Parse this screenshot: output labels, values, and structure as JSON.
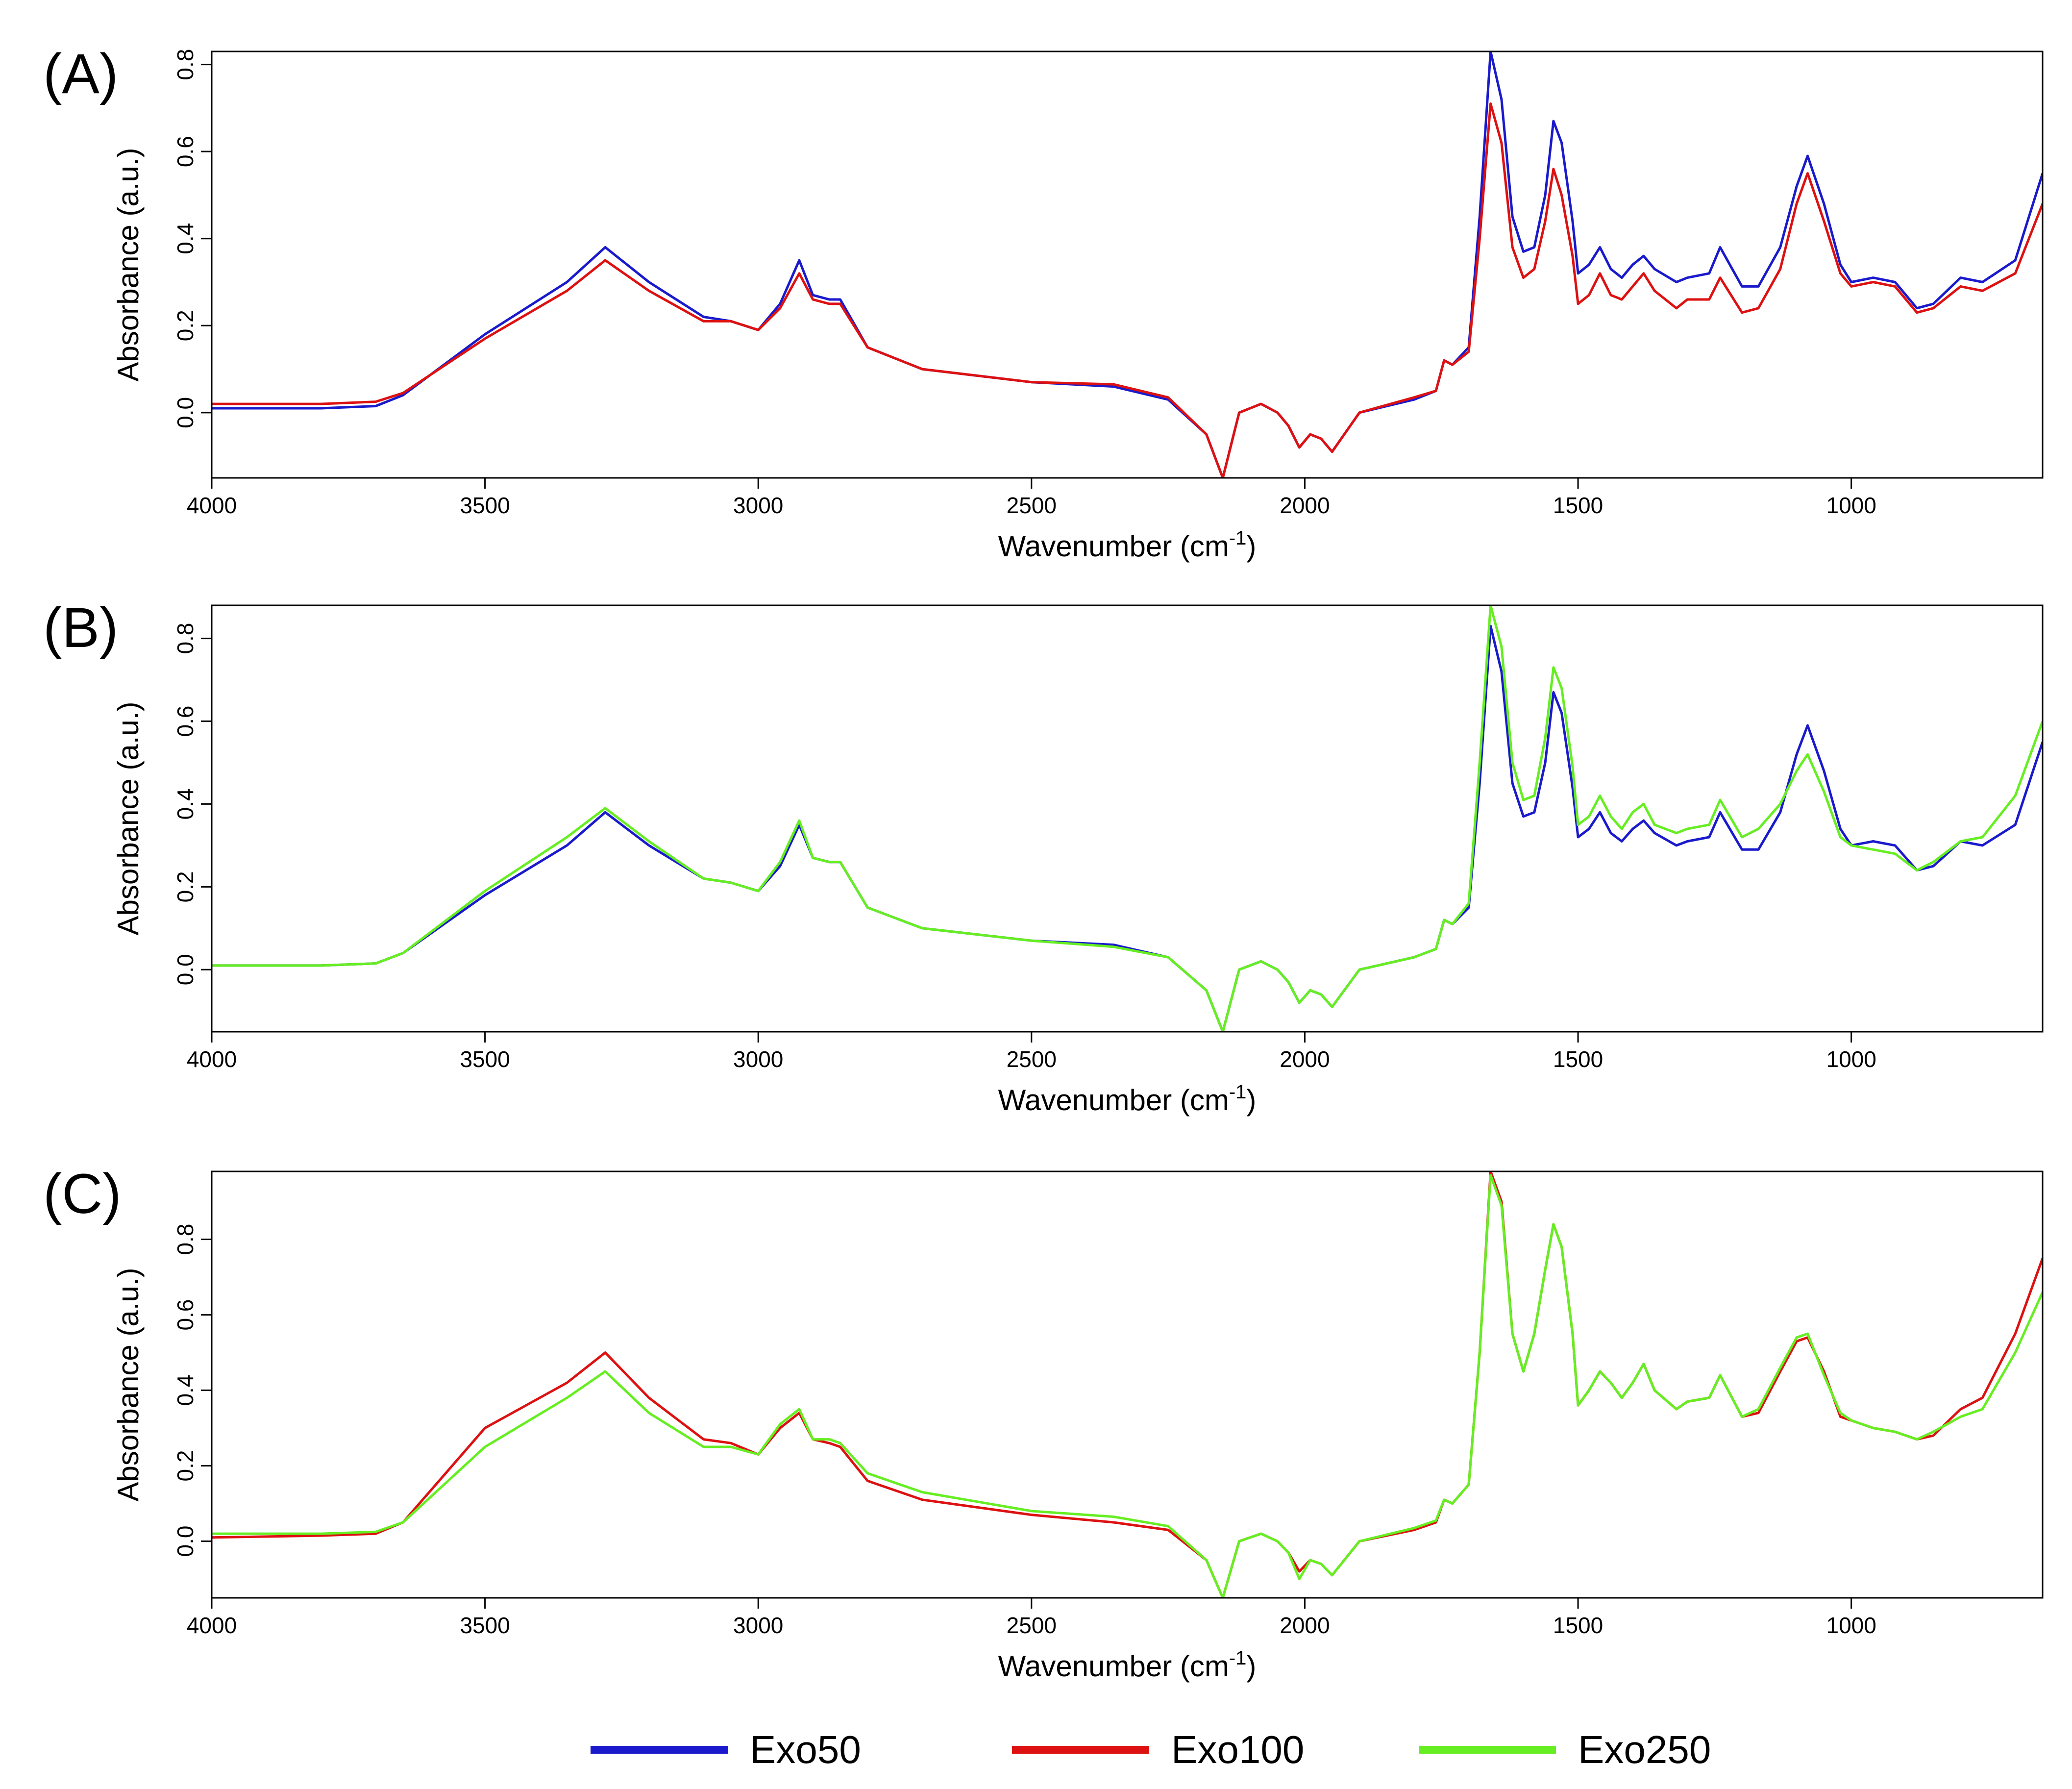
{
  "figure": {
    "legend": [
      {
        "name": "Exo50",
        "color": "#1a1acc"
      },
      {
        "name": "Exo100",
        "color": "#dd1111"
      },
      {
        "name": "Exo250",
        "color": "#66ee22"
      }
    ]
  },
  "chart_data": [
    {
      "type": "line",
      "panel_label": "(A)",
      "xlabel": "Wavenumber (cm",
      "xlabel_sup": "-1",
      "xlabel_end": ")",
      "ylabel": "Absorbance (a.u.)",
      "xlim": [
        4000,
        650
      ],
      "ylim": [
        -0.15,
        0.83
      ],
      "xticks": [
        4000,
        3500,
        3000,
        2500,
        2000,
        1500,
        1000
      ],
      "xtick_labels": [
        "4000",
        "3500",
        "3000",
        "2500",
        "2000",
        "1500",
        "1000"
      ],
      "yticks": [
        0.0,
        0.2,
        0.4,
        0.6,
        0.8
      ],
      "ytick_labels": [
        "0.0",
        "0.2",
        "0.4",
        "0.6",
        "0.8"
      ],
      "series": [
        {
          "name": "Exo50",
          "color": "#1a1acc",
          "x": [
            4000,
            3800,
            3700,
            3650,
            3500,
            3350,
            3280,
            3200,
            3100,
            3050,
            3000,
            2960,
            2925,
            2900,
            2870,
            2850,
            2800,
            2700,
            2500,
            2350,
            2250,
            2180,
            2150,
            2120,
            2080,
            2050,
            2030,
            2010,
            1990,
            1970,
            1950,
            1900,
            1800,
            1760,
            1745,
            1730,
            1700,
            1680,
            1660,
            1640,
            1620,
            1600,
            1580,
            1560,
            1545,
            1530,
            1510,
            1500,
            1480,
            1460,
            1440,
            1420,
            1400,
            1380,
            1360,
            1320,
            1300,
            1260,
            1240,
            1200,
            1170,
            1130,
            1100,
            1080,
            1050,
            1020,
            1000,
            960,
            920,
            880,
            850,
            800,
            760,
            700,
            650
          ],
          "y": [
            0.01,
            0.01,
            0.015,
            0.04,
            0.18,
            0.3,
            0.38,
            0.3,
            0.22,
            0.21,
            0.19,
            0.25,
            0.35,
            0.27,
            0.26,
            0.26,
            0.15,
            0.1,
            0.07,
            0.06,
            0.03,
            -0.05,
            -0.15,
            0.0,
            0.02,
            0.0,
            -0.03,
            -0.08,
            -0.05,
            -0.06,
            -0.09,
            0.0,
            0.03,
            0.05,
            0.12,
            0.11,
            0.15,
            0.45,
            0.83,
            0.72,
            0.45,
            0.37,
            0.38,
            0.5,
            0.67,
            0.62,
            0.44,
            0.32,
            0.34,
            0.38,
            0.33,
            0.31,
            0.34,
            0.36,
            0.33,
            0.3,
            0.31,
            0.32,
            0.38,
            0.29,
            0.29,
            0.38,
            0.52,
            0.59,
            0.48,
            0.34,
            0.3,
            0.31,
            0.3,
            0.24,
            0.25,
            0.31,
            0.3,
            0.35,
            0.55
          ]
        },
        {
          "name": "Exo100",
          "color": "#dd1111",
          "x": [
            4000,
            3800,
            3700,
            3650,
            3500,
            3350,
            3280,
            3200,
            3100,
            3050,
            3000,
            2960,
            2925,
            2900,
            2870,
            2850,
            2800,
            2700,
            2500,
            2350,
            2250,
            2180,
            2150,
            2120,
            2080,
            2050,
            2030,
            2010,
            1990,
            1970,
            1950,
            1900,
            1800,
            1760,
            1745,
            1730,
            1700,
            1680,
            1660,
            1640,
            1620,
            1600,
            1580,
            1560,
            1545,
            1530,
            1510,
            1500,
            1480,
            1460,
            1440,
            1420,
            1400,
            1380,
            1360,
            1320,
            1300,
            1260,
            1240,
            1200,
            1170,
            1130,
            1100,
            1080,
            1050,
            1020,
            1000,
            960,
            920,
            880,
            850,
            800,
            760,
            700,
            650
          ],
          "y": [
            0.02,
            0.02,
            0.025,
            0.045,
            0.17,
            0.28,
            0.35,
            0.28,
            0.21,
            0.21,
            0.19,
            0.24,
            0.32,
            0.26,
            0.25,
            0.25,
            0.15,
            0.1,
            0.07,
            0.065,
            0.035,
            -0.05,
            -0.15,
            0.0,
            0.02,
            0.0,
            -0.03,
            -0.08,
            -0.05,
            -0.06,
            -0.09,
            0.0,
            0.035,
            0.05,
            0.12,
            0.11,
            0.14,
            0.4,
            0.71,
            0.62,
            0.38,
            0.31,
            0.33,
            0.44,
            0.56,
            0.5,
            0.36,
            0.25,
            0.27,
            0.32,
            0.27,
            0.26,
            0.29,
            0.32,
            0.28,
            0.24,
            0.26,
            0.26,
            0.31,
            0.23,
            0.24,
            0.33,
            0.48,
            0.55,
            0.44,
            0.32,
            0.29,
            0.3,
            0.29,
            0.23,
            0.24,
            0.29,
            0.28,
            0.32,
            0.48
          ]
        }
      ]
    },
    {
      "type": "line",
      "panel_label": "(B)",
      "xlabel": "Wavenumber (cm",
      "xlabel_sup": "-1",
      "xlabel_end": ")",
      "ylabel": "Absorbance (a.u.)",
      "xlim": [
        4000,
        650
      ],
      "ylim": [
        -0.15,
        0.88
      ],
      "xticks": [
        4000,
        3500,
        3000,
        2500,
        2000,
        1500,
        1000
      ],
      "xtick_labels": [
        "4000",
        "3500",
        "3000",
        "2500",
        "2000",
        "1500",
        "1000"
      ],
      "yticks": [
        0.0,
        0.2,
        0.4,
        0.6,
        0.8
      ],
      "ytick_labels": [
        "0.0",
        "0.2",
        "0.4",
        "0.6",
        "0.8"
      ],
      "series": [
        {
          "name": "Exo50",
          "color": "#1a1acc",
          "x": [
            4000,
            3800,
            3700,
            3650,
            3500,
            3350,
            3280,
            3200,
            3100,
            3050,
            3000,
            2960,
            2925,
            2900,
            2870,
            2850,
            2800,
            2700,
            2500,
            2350,
            2250,
            2180,
            2150,
            2120,
            2080,
            2050,
            2030,
            2010,
            1990,
            1970,
            1950,
            1900,
            1800,
            1760,
            1745,
            1730,
            1700,
            1680,
            1660,
            1640,
            1620,
            1600,
            1580,
            1560,
            1545,
            1530,
            1510,
            1500,
            1480,
            1460,
            1440,
            1420,
            1400,
            1380,
            1360,
            1320,
            1300,
            1260,
            1240,
            1200,
            1170,
            1130,
            1100,
            1080,
            1050,
            1020,
            1000,
            960,
            920,
            880,
            850,
            800,
            760,
            700,
            650
          ],
          "y": [
            0.01,
            0.01,
            0.015,
            0.04,
            0.18,
            0.3,
            0.38,
            0.3,
            0.22,
            0.21,
            0.19,
            0.25,
            0.35,
            0.27,
            0.26,
            0.26,
            0.15,
            0.1,
            0.07,
            0.06,
            0.03,
            -0.05,
            -0.15,
            0.0,
            0.02,
            0.0,
            -0.03,
            -0.08,
            -0.05,
            -0.06,
            -0.09,
            0.0,
            0.03,
            0.05,
            0.12,
            0.11,
            0.15,
            0.45,
            0.83,
            0.72,
            0.45,
            0.37,
            0.38,
            0.5,
            0.67,
            0.62,
            0.44,
            0.32,
            0.34,
            0.38,
            0.33,
            0.31,
            0.34,
            0.36,
            0.33,
            0.3,
            0.31,
            0.32,
            0.38,
            0.29,
            0.29,
            0.38,
            0.52,
            0.59,
            0.48,
            0.34,
            0.3,
            0.31,
            0.3,
            0.24,
            0.25,
            0.31,
            0.3,
            0.35,
            0.55
          ]
        },
        {
          "name": "Exo250",
          "color": "#66ee22",
          "x": [
            4000,
            3800,
            3700,
            3650,
            3500,
            3350,
            3280,
            3200,
            3100,
            3050,
            3000,
            2960,
            2925,
            2900,
            2870,
            2850,
            2800,
            2700,
            2500,
            2350,
            2250,
            2180,
            2150,
            2120,
            2080,
            2050,
            2030,
            2010,
            1990,
            1970,
            1950,
            1900,
            1800,
            1760,
            1745,
            1730,
            1700,
            1680,
            1660,
            1640,
            1620,
            1600,
            1580,
            1560,
            1545,
            1530,
            1510,
            1500,
            1480,
            1460,
            1440,
            1420,
            1400,
            1380,
            1360,
            1320,
            1300,
            1260,
            1240,
            1200,
            1170,
            1130,
            1100,
            1080,
            1050,
            1020,
            1000,
            960,
            920,
            880,
            850,
            800,
            760,
            700,
            650
          ],
          "y": [
            0.01,
            0.01,
            0.015,
            0.04,
            0.19,
            0.32,
            0.39,
            0.31,
            0.22,
            0.21,
            0.19,
            0.26,
            0.36,
            0.27,
            0.26,
            0.26,
            0.15,
            0.1,
            0.07,
            0.055,
            0.03,
            -0.05,
            -0.15,
            0.0,
            0.02,
            0.0,
            -0.03,
            -0.08,
            -0.05,
            -0.06,
            -0.09,
            0.0,
            0.03,
            0.05,
            0.12,
            0.11,
            0.16,
            0.5,
            0.88,
            0.78,
            0.5,
            0.41,
            0.42,
            0.56,
            0.73,
            0.68,
            0.49,
            0.35,
            0.37,
            0.42,
            0.37,
            0.34,
            0.38,
            0.4,
            0.35,
            0.33,
            0.34,
            0.35,
            0.41,
            0.32,
            0.34,
            0.4,
            0.48,
            0.52,
            0.43,
            0.32,
            0.3,
            0.29,
            0.28,
            0.24,
            0.26,
            0.31,
            0.32,
            0.42,
            0.6
          ]
        }
      ]
    },
    {
      "type": "line",
      "panel_label": "(C)",
      "xlabel": "Wavenumber (cm",
      "xlabel_sup": "-1",
      "xlabel_end": ")",
      "ylabel": "Absorbance (a.u.)",
      "xlim": [
        4000,
        650
      ],
      "ylim": [
        -0.15,
        0.98
      ],
      "xticks": [
        4000,
        3500,
        3000,
        2500,
        2000,
        1500,
        1000
      ],
      "xtick_labels": [
        "4000",
        "3500",
        "3000",
        "2500",
        "2000",
        "1500",
        "1000"
      ],
      "yticks": [
        0.0,
        0.2,
        0.4,
        0.6,
        0.8
      ],
      "ytick_labels": [
        "0.0",
        "0.2",
        "0.4",
        "0.6",
        "0.8"
      ],
      "series": [
        {
          "name": "Exo100",
          "color": "#dd1111",
          "x": [
            4000,
            3800,
            3700,
            3650,
            3500,
            3350,
            3280,
            3200,
            3100,
            3050,
            3000,
            2960,
            2925,
            2900,
            2870,
            2850,
            2800,
            2700,
            2500,
            2350,
            2250,
            2180,
            2150,
            2120,
            2080,
            2050,
            2030,
            2010,
            1990,
            1970,
            1950,
            1900,
            1800,
            1760,
            1745,
            1730,
            1700,
            1680,
            1660,
            1640,
            1620,
            1600,
            1580,
            1560,
            1545,
            1530,
            1510,
            1500,
            1480,
            1460,
            1440,
            1420,
            1400,
            1380,
            1360,
            1320,
            1300,
            1260,
            1240,
            1200,
            1170,
            1130,
            1100,
            1080,
            1050,
            1020,
            1000,
            960,
            920,
            880,
            850,
            800,
            760,
            700,
            650
          ],
          "y": [
            0.01,
            0.015,
            0.02,
            0.05,
            0.3,
            0.42,
            0.5,
            0.38,
            0.27,
            0.26,
            0.23,
            0.3,
            0.34,
            0.27,
            0.26,
            0.25,
            0.16,
            0.11,
            0.07,
            0.05,
            0.03,
            -0.05,
            -0.15,
            0.0,
            0.02,
            0.0,
            -0.03,
            -0.08,
            -0.05,
            -0.06,
            -0.09,
            0.0,
            0.03,
            0.05,
            0.11,
            0.1,
            0.15,
            0.5,
            0.98,
            0.9,
            0.55,
            0.45,
            0.55,
            0.72,
            0.84,
            0.78,
            0.55,
            0.36,
            0.4,
            0.45,
            0.42,
            0.38,
            0.42,
            0.47,
            0.4,
            0.35,
            0.37,
            0.38,
            0.44,
            0.33,
            0.34,
            0.45,
            0.53,
            0.54,
            0.45,
            0.33,
            0.32,
            0.3,
            0.29,
            0.27,
            0.28,
            0.35,
            0.38,
            0.55,
            0.75
          ]
        },
        {
          "name": "Exo250",
          "color": "#66ee22",
          "x": [
            4000,
            3800,
            3700,
            3650,
            3500,
            3350,
            3280,
            3200,
            3100,
            3050,
            3000,
            2960,
            2925,
            2900,
            2870,
            2850,
            2800,
            2700,
            2500,
            2350,
            2250,
            2180,
            2150,
            2120,
            2080,
            2050,
            2030,
            2010,
            1990,
            1970,
            1950,
            1900,
            1800,
            1760,
            1745,
            1730,
            1700,
            1680,
            1660,
            1640,
            1620,
            1600,
            1580,
            1560,
            1545,
            1530,
            1510,
            1500,
            1480,
            1460,
            1440,
            1420,
            1400,
            1380,
            1360,
            1320,
            1300,
            1260,
            1240,
            1200,
            1170,
            1130,
            1100,
            1080,
            1050,
            1020,
            1000,
            960,
            920,
            880,
            850,
            800,
            760,
            700,
            650
          ],
          "y": [
            0.02,
            0.02,
            0.025,
            0.05,
            0.25,
            0.38,
            0.45,
            0.34,
            0.25,
            0.25,
            0.23,
            0.31,
            0.35,
            0.27,
            0.27,
            0.26,
            0.18,
            0.13,
            0.08,
            0.065,
            0.04,
            -0.05,
            -0.15,
            0.0,
            0.02,
            0.0,
            -0.03,
            -0.1,
            -0.05,
            -0.06,
            -0.09,
            0.0,
            0.035,
            0.055,
            0.11,
            0.1,
            0.15,
            0.5,
            0.97,
            0.89,
            0.55,
            0.45,
            0.55,
            0.72,
            0.84,
            0.78,
            0.55,
            0.36,
            0.4,
            0.45,
            0.42,
            0.38,
            0.42,
            0.47,
            0.4,
            0.35,
            0.37,
            0.38,
            0.44,
            0.33,
            0.35,
            0.46,
            0.54,
            0.55,
            0.44,
            0.34,
            0.32,
            0.3,
            0.29,
            0.27,
            0.29,
            0.33,
            0.35,
            0.5,
            0.66
          ]
        }
      ]
    }
  ]
}
